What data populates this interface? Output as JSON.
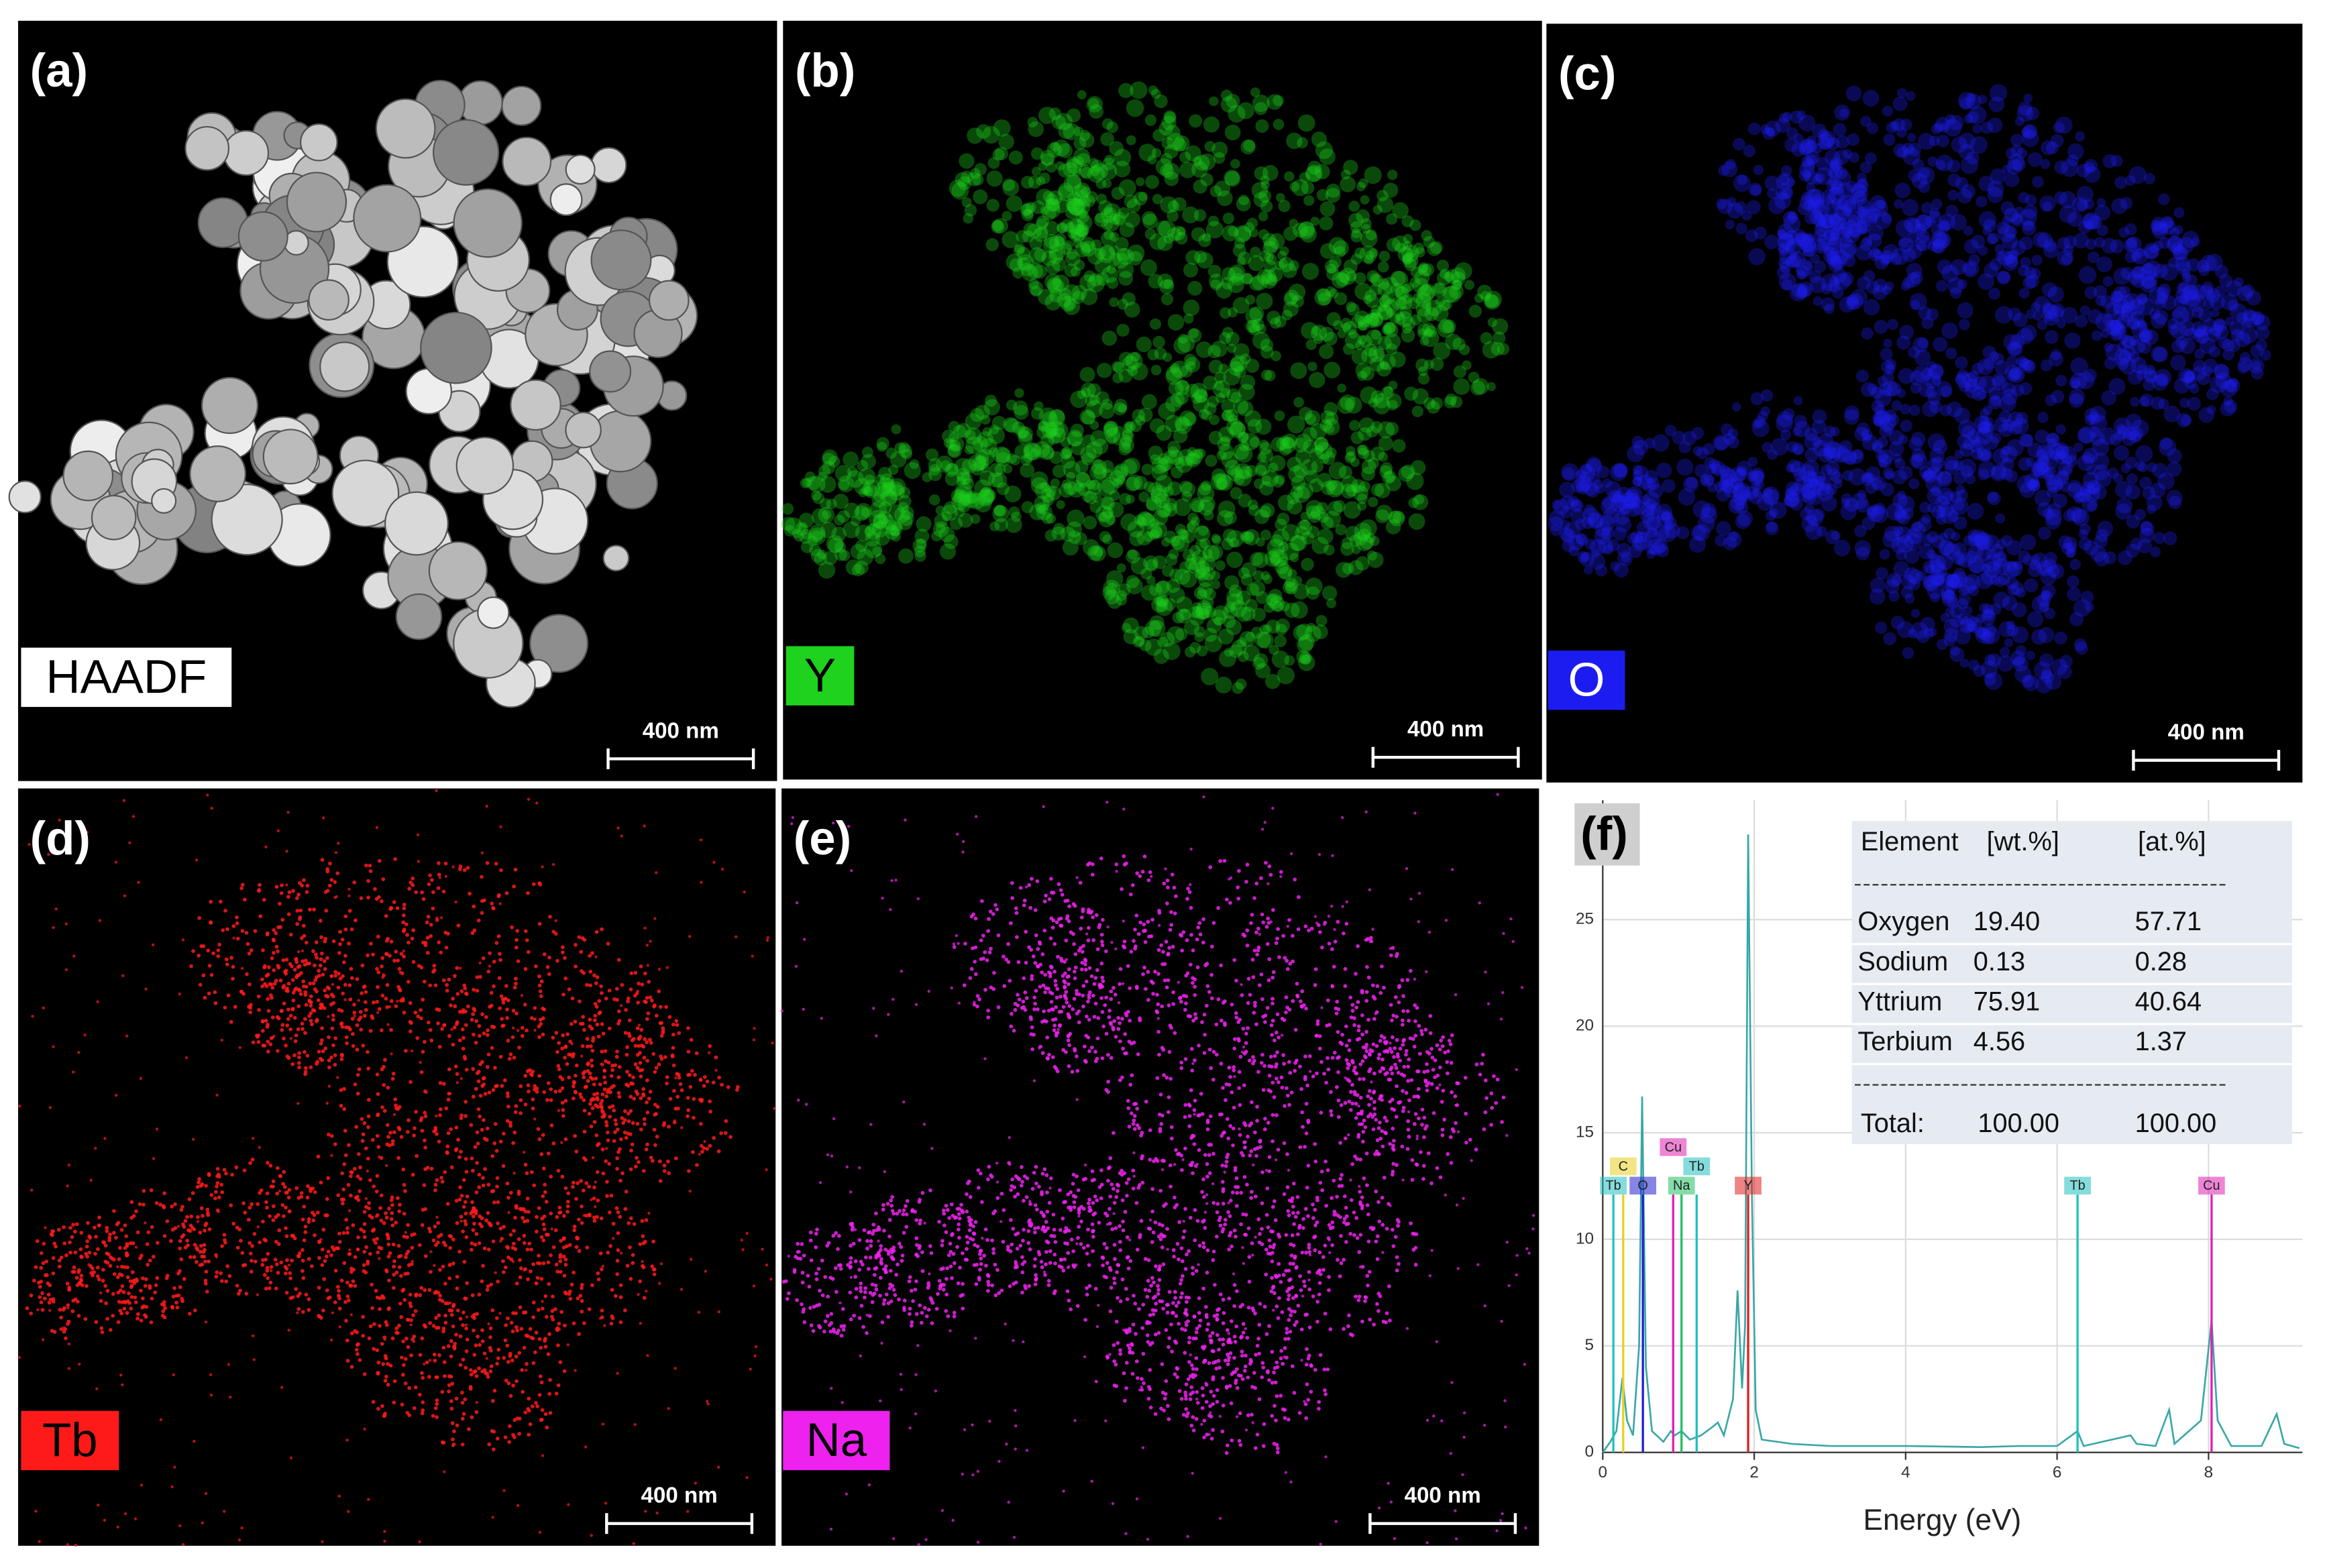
{
  "panels": [
    {
      "tag": "(a)",
      "label": "HAADF",
      "scale_bar": "400 nm",
      "color": "#d8d8d8"
    },
    {
      "tag": "(b)",
      "label": "Y",
      "scale_bar": "400 nm",
      "color": "#1ed21e"
    },
    {
      "tag": "(c)",
      "label": "O",
      "scale_bar": "400 nm",
      "color": "#1c1cf0"
    },
    {
      "tag": "(d)",
      "label": "Tb",
      "scale_bar": "400 nm",
      "color": "#ff1a1a"
    },
    {
      "tag": "(e)",
      "label": "Na",
      "scale_bar": "400 nm",
      "color": "#ee22ee"
    }
  ],
  "chart_data": {
    "type": "line",
    "panel_label": "(f)",
    "x_label": "Energy (eV)",
    "color": "#3aa7a7",
    "x": [
      0.0,
      0.1,
      0.18,
      0.26,
      0.32,
      0.4,
      0.48,
      0.52,
      0.57,
      0.65,
      0.8,
      0.9,
      0.95,
      1.04,
      1.15,
      1.3,
      1.45,
      1.52,
      1.6,
      1.72,
      1.78,
      1.84,
      1.88,
      1.92,
      1.97,
      2.02,
      2.1,
      2.5,
      3,
      4,
      5,
      5.5,
      6,
      6.27,
      6.35,
      6.97,
      7.05,
      7.3,
      7.48,
      7.55,
      7.9,
      8.04,
      8.12,
      8.3,
      8.7,
      8.9,
      9.0,
      9.2
    ],
    "values": [
      0,
      0.5,
      1,
      3.5,
      1.5,
      0.8,
      5,
      16.7,
      4,
      1,
      0.5,
      1,
      0.8,
      1,
      0.6,
      0.8,
      1.2,
      1.4,
      0.8,
      2.5,
      7.6,
      3,
      6,
      29,
      12,
      2,
      0.6,
      0.4,
      0.3,
      0.3,
      0.25,
      0.3,
      0.3,
      1,
      0.3,
      0.8,
      0.4,
      0.3,
      2,
      0.4,
      1.5,
      6.2,
      1.5,
      0.3,
      0.3,
      1.8,
      0.4,
      0.2
    ],
    "xlim": [
      0,
      9.24
    ],
    "ylim": [
      0,
      30.6
    ],
    "xticks": [
      0,
      2,
      4,
      6,
      8
    ],
    "yticks": [
      0,
      5,
      10,
      15,
      20,
      25
    ],
    "grid": true,
    "markers": [
      {
        "label": "Tb",
        "x": 0.14,
        "color": "#20c0c0"
      },
      {
        "label": "C",
        "x": 0.27,
        "color": "#e8d020"
      },
      {
        "label": "O",
        "x": 0.53,
        "color": "#2020d0"
      },
      {
        "label": "Cu",
        "x": 0.93,
        "color": "#e020b0"
      },
      {
        "label": "Na",
        "x": 1.04,
        "color": "#20c060"
      },
      {
        "label": "Tb",
        "x": 1.24,
        "color": "#20c0c0"
      },
      {
        "label": "Y",
        "x": 1.92,
        "color": "#e02020"
      },
      {
        "label": "Tb",
        "x": 6.27,
        "color": "#20c0c0"
      },
      {
        "label": "Cu",
        "x": 8.04,
        "color": "#e020b0"
      }
    ],
    "table": {
      "header": [
        "Element",
        "[wt.%]",
        "[at.%]"
      ],
      "rows": [
        [
          "Oxygen",
          "19.40",
          "57.71"
        ],
        [
          "Sodium",
          "0.13",
          "0.28"
        ],
        [
          "Yttrium",
          "75.91",
          "40.64"
        ],
        [
          "Terbium",
          "4.56",
          "1.37"
        ]
      ],
      "total": [
        "Total:",
        "100.00",
        "100.00"
      ]
    }
  }
}
